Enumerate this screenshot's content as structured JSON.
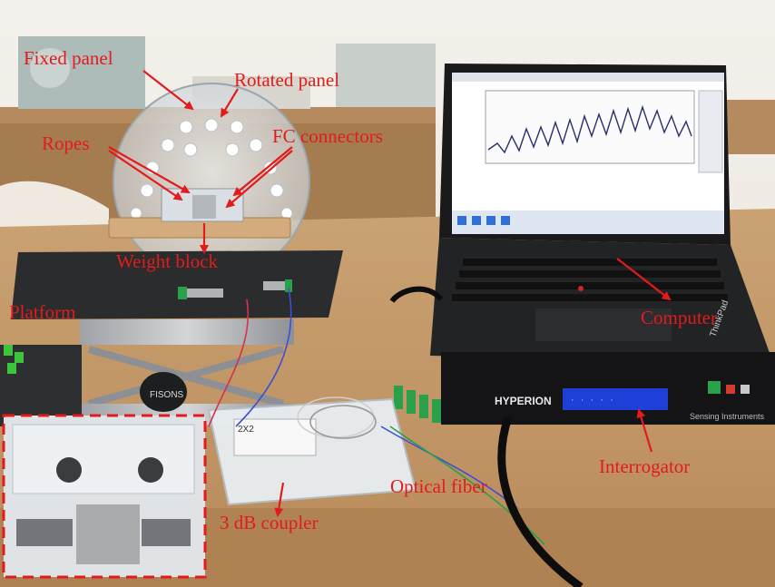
{
  "labels": {
    "fixed_panel": "Fixed panel",
    "rotated_panel": "Rotated panel",
    "ropes": "Ropes",
    "fc_connectors": "FC connectors",
    "weight_block": "Weight block",
    "platform": "Platform",
    "computer": "Computer",
    "interrogator": "Interrogator",
    "optical_fiber": "Optical fiber",
    "coupler": "3 dB coupler"
  },
  "colors": {
    "annotation": "#e31b1b",
    "interrogator_display": "#1f3fd9",
    "screen_background": "#ffffff"
  },
  "device_text": {
    "interrogator_brand": "HYPERION",
    "interrogator_footer": "Sensing Instruments",
    "laptop_brand": "ThinkPad",
    "coupler_box": "2X2",
    "jack_label": "FISONS"
  }
}
